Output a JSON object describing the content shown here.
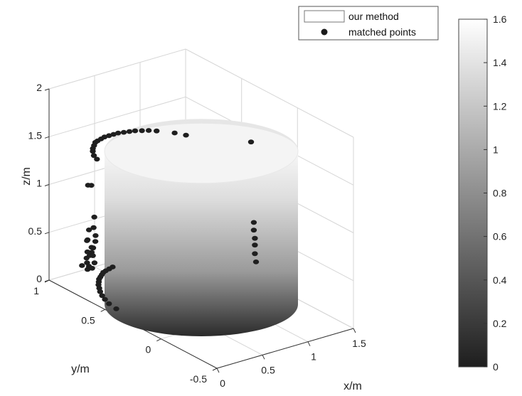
{
  "chart_data": {
    "type": "scatter",
    "surface": "cylinder",
    "legend": {
      "placement": "top-right",
      "entries": [
        "our method",
        "matched points"
      ]
    },
    "axes": {
      "xlabel": "x/m",
      "ylabel": "y/m",
      "zlabel": "z/m",
      "xlim": [
        0,
        1.5
      ],
      "ylim": [
        -0.5,
        1
      ],
      "zlim": [
        0,
        2
      ],
      "xticks": [
        "0",
        "0.5",
        "1",
        "1.5"
      ],
      "yticks": [
        "-0.5",
        "0",
        "0.5",
        "1"
      ],
      "zticks": [
        "0",
        "0.5",
        "1",
        "1.5",
        "2"
      ]
    },
    "grid": true,
    "colorbar": {
      "ticks": [
        "0",
        "0.2",
        "0.4",
        "0.6",
        "0.8",
        "1",
        "1.2",
        "1.4",
        "1.6"
      ],
      "min": 0,
      "max": 1.6,
      "colormap": "gray"
    },
    "cylinder": {
      "center_x": 0.75,
      "center_y": 0.25,
      "radius": 0.75,
      "height": 1.6
    },
    "matched_points": [
      [
        0.28,
        0.8,
        1.31
      ],
      [
        0.32,
        0.86,
        1.3
      ],
      [
        0.37,
        0.91,
        1.3
      ],
      [
        0.42,
        0.95,
        1.29
      ],
      [
        0.47,
        0.98,
        1.29
      ],
      [
        0.52,
        1.01,
        1.29
      ],
      [
        0.57,
        1.03,
        1.28
      ],
      [
        0.62,
        1.04,
        1.28
      ],
      [
        0.67,
        1.05,
        1.28
      ],
      [
        0.72,
        1.05,
        1.28
      ],
      [
        0.77,
        1.05,
        1.28
      ],
      [
        0.82,
        1.05,
        1.28
      ],
      [
        0.87,
        1.04,
        1.28
      ],
      [
        0.92,
        1.03,
        1.28
      ],
      [
        0.97,
        1.02,
        1.28
      ],
      [
        1.02,
        1.0,
        1.28
      ],
      [
        1.07,
        0.98,
        1.28
      ],
      [
        1.12,
        0.95,
        1.28
      ],
      [
        1.22,
        0.87,
        1.28
      ],
      [
        1.27,
        0.81,
        1.28
      ],
      [
        1.42,
        0.35,
        1.45
      ],
      [
        0.12,
        0.7,
        0.7
      ],
      [
        0.13,
        0.69,
        0.62
      ],
      [
        0.14,
        0.7,
        0.55
      ],
      [
        0.14,
        0.72,
        0.47
      ],
      [
        0.16,
        0.75,
        0.4
      ],
      [
        0.2,
        0.82,
        0.35
      ],
      [
        0.24,
        0.86,
        0.25
      ],
      [
        0.27,
        0.88,
        0.18
      ],
      [
        0.3,
        0.9,
        0.09
      ],
      [
        0.34,
        0.92,
        0.1
      ],
      [
        0.36,
        0.93,
        0.2
      ],
      [
        0.38,
        0.93,
        0.28
      ],
      [
        0.42,
        0.95,
        0.17
      ],
      [
        0.45,
        0.96,
        0.08
      ],
      [
        0.4,
        0.94,
        0.05
      ],
      [
        0.3,
        0.9,
        0.4
      ],
      [
        0.34,
        0.92,
        0.48
      ],
      [
        0.22,
        0.84,
        0.45
      ],
      [
        0.46,
        0.97,
        0.55
      ],
      [
        0.33,
        0.92,
        0.95
      ],
      [
        0.39,
        0.94,
        0.92
      ],
      [
        1.45,
        0.35,
        0.6
      ],
      [
        1.45,
        0.35,
        0.52
      ],
      [
        1.45,
        0.34,
        0.44
      ],
      [
        1.45,
        0.34,
        0.37
      ],
      [
        1.45,
        0.34,
        0.28
      ],
      [
        1.45,
        0.33,
        0.2
      ],
      [
        0.05,
        0.44,
        0.03
      ],
      [
        0.08,
        0.53,
        0.02
      ],
      [
        0.11,
        0.59,
        0.02
      ],
      [
        0.14,
        0.64,
        0.02
      ],
      [
        0.18,
        0.69,
        0.02
      ],
      [
        0.22,
        0.73,
        0.02
      ],
      [
        0.26,
        0.77,
        0.02
      ],
      [
        0.3,
        0.8,
        0.02
      ],
      [
        0.34,
        0.83,
        0.02
      ],
      [
        0.38,
        0.85,
        0.02
      ],
      [
        0.42,
        0.87,
        0.02
      ],
      [
        0.46,
        0.89,
        0.02
      ],
      [
        0.5,
        0.9,
        0.02
      ],
      [
        0.55,
        0.91,
        0.02
      ],
      [
        0.6,
        0.92,
        0.02
      ],
      [
        0.3,
        0.95,
        0.1
      ]
    ]
  }
}
